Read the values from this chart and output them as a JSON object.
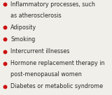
{
  "items": [
    "Inflammatory processes, such\nas atherosclerosis",
    "Adiposity",
    "Smoking",
    "Intercurrent illnesses",
    "Hormone replacement therapy in\npost-menopausal women",
    "Diabetes or metabolic syndrome"
  ],
  "bullet_color": "#cc1111",
  "text_color": "#2a2a2a",
  "background_color": "#f0efe9",
  "font_size": 5.8,
  "bullet_size": 18,
  "fig_width": 1.6,
  "fig_height": 1.36,
  "dpi": 100
}
